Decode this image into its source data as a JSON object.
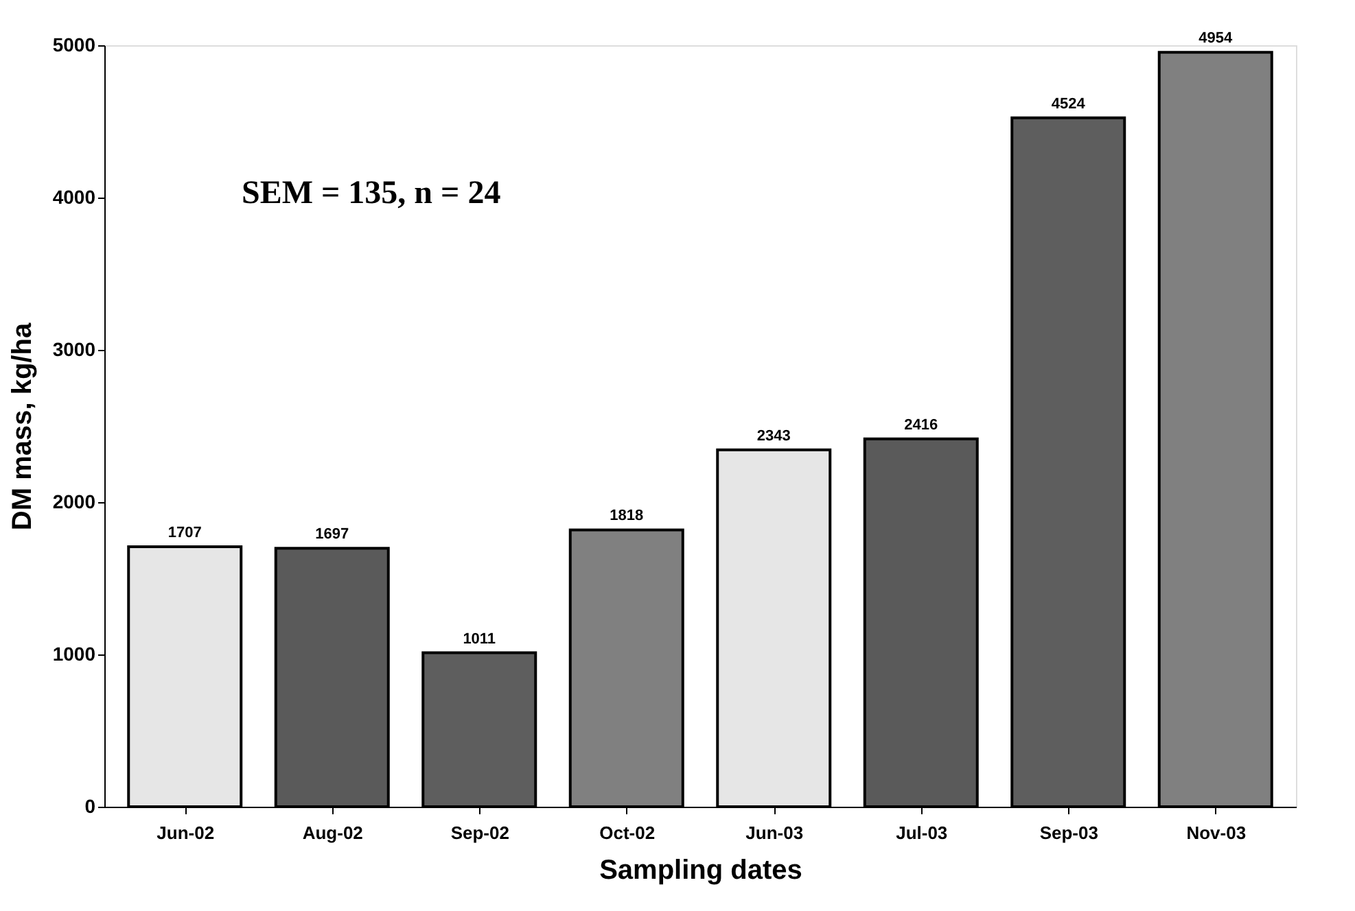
{
  "chart_data": {
    "type": "bar",
    "xlabel": "Sampling dates",
    "ylabel": "DM mass, kg/ha",
    "categories": [
      "Jun-02",
      "Aug-02",
      "Sep-02",
      "Oct-02",
      "Jun-03",
      "Jul-03",
      "Sep-03",
      "Nov-03"
    ],
    "values": [
      1707,
      1697,
      1011,
      1818,
      2343,
      2416,
      4524,
      4954
    ],
    "colors": [
      "#e6e6e6",
      "#5a5a5a",
      "#5e5e5e",
      "#808080",
      "#e6e6e6",
      "#5a5a5a",
      "#5e5e5e",
      "#808080"
    ],
    "ylim": [
      0,
      5000
    ],
    "yticks": [
      0,
      1000,
      2000,
      3000,
      4000,
      5000
    ],
    "data_labels": true,
    "grid": false,
    "annotations": [
      "SEM = 135, n = 24"
    ]
  }
}
